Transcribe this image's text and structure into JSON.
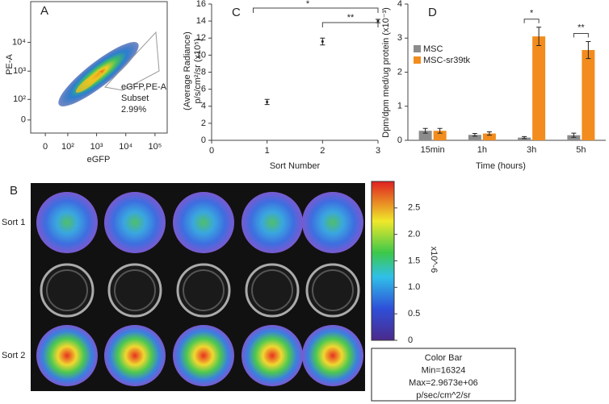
{
  "chart_data": [
    {
      "type": "density",
      "panel": "A",
      "xlabel": "eGFP",
      "ylabel": "PE-A",
      "xlim": [
        -50,
        262144
      ],
      "ylim": [
        -50,
        262144
      ],
      "xticks": [
        0,
        {
          "value": 100,
          "label": "10²"
        },
        {
          "value": 1000,
          "label": "10³"
        },
        {
          "value": 10000,
          "label": "10⁴"
        },
        {
          "value": 100000,
          "label": "10⁵"
        }
      ],
      "yticks": [
        0,
        {
          "value": 100,
          "label": "10²"
        },
        {
          "value": 1000,
          "label": "10³"
        },
        {
          "value": 10000,
          "label": "10⁴"
        }
      ],
      "gate_label": [
        "eGFP,PE-A",
        "Subset",
        "2.99%"
      ]
    },
    {
      "type": "image",
      "panel": "B",
      "row_labels": [
        "Sort 1",
        "Sort 2"
      ],
      "colorbar": {
        "clim": [
          0,
          3
        ],
        "ticks": [
          0,
          0.5,
          {
            "value": 1,
            "label": "1.0"
          },
          1.5,
          {
            "value": 2,
            "label": "2.0"
          },
          2.5
        ],
        "label": "x10^-6"
      },
      "info": [
        "Color Bar",
        "Min=16324",
        "Max=2.9673e+06",
        "p/sec/cm^2/sr"
      ]
    },
    {
      "type": "scatter",
      "panel": "C",
      "xlabel": "Sort Number",
      "ylabel": [
        "(Average Radiance)",
        "p/s/cm²/sr (x10⁵)"
      ],
      "x": [
        1,
        2,
        3
      ],
      "values": [
        4.5,
        11.6,
        14.0
      ],
      "errors": [
        0.3,
        0.4,
        0.2
      ],
      "xlim": [
        0,
        3
      ],
      "xticks": [
        0,
        1,
        2,
        3
      ],
      "ylim": [
        0,
        16
      ],
      "yticks": [
        0,
        2,
        4,
        6,
        8,
        10,
        12,
        14,
        16
      ],
      "annotations": [
        "*",
        "**"
      ]
    },
    {
      "type": "bar",
      "panel": "D",
      "xlabel": "Time (hours)",
      "ylabel": "Dpm/dpm med/ug protein (x10⁻³)",
      "categories": [
        "15min",
        "1h",
        "3h",
        "5h"
      ],
      "series": [
        {
          "name": "MSC",
          "color": "#8c8c8c",
          "values": [
            0.28,
            0.16,
            0.08,
            0.15
          ],
          "errors": [
            0.07,
            0.04,
            0.03,
            0.06
          ]
        },
        {
          "name": "MSC-sr39tk",
          "color": "#f28c1e",
          "values": [
            0.28,
            0.2,
            3.05,
            2.65
          ],
          "errors": [
            0.07,
            0.05,
            0.27,
            0.25
          ]
        }
      ],
      "ylim": [
        0,
        4
      ],
      "yticks": [
        0,
        1,
        2,
        3,
        4
      ],
      "significance": [
        null,
        null,
        "*",
        "**"
      ]
    }
  ]
}
